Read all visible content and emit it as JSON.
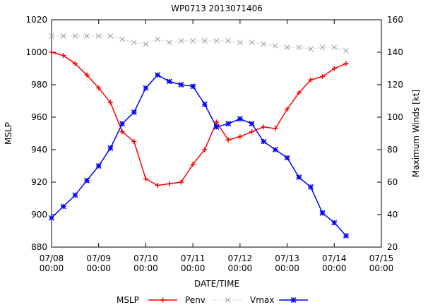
{
  "chart_data": {
    "type": "line",
    "title": "WP0713 2013071406",
    "xlabel": "DATE/TIME",
    "ylabel": "MSLP",
    "y2label": "Maximum Winds [kt]",
    "xlim": [
      0,
      168
    ],
    "ylim": [
      880,
      1020
    ],
    "y2lim": [
      20,
      160
    ],
    "x_ticks": [
      {
        "value": 0,
        "line1": "07/08",
        "line2": "00:00"
      },
      {
        "value": 24,
        "line1": "07/09",
        "line2": "00:00"
      },
      {
        "value": 48,
        "line1": "07/10",
        "line2": "00:00"
      },
      {
        "value": 72,
        "line1": "07/11",
        "line2": "00:00"
      },
      {
        "value": 96,
        "line1": "07/12",
        "line2": "00:00"
      },
      {
        "value": 120,
        "line1": "07/13",
        "line2": "00:00"
      },
      {
        "value": 144,
        "line1": "07/14",
        "line2": "00:00"
      },
      {
        "value": 168,
        "line1": "07/15",
        "line2": "00:00"
      }
    ],
    "y_ticks": [
      880,
      900,
      920,
      940,
      960,
      980,
      1000,
      1020
    ],
    "y2_ticks": [
      20,
      40,
      60,
      80,
      100,
      120,
      140,
      160
    ],
    "x": [
      0,
      6,
      12,
      18,
      24,
      30,
      36,
      42,
      48,
      54,
      60,
      66,
      72,
      78,
      84,
      90,
      96,
      102,
      108,
      114,
      120,
      126,
      132,
      138,
      144,
      150
    ],
    "series": [
      {
        "name": "MSLP",
        "axis": "y",
        "color": "#000000",
        "values": [
          null,
          null,
          null,
          null,
          null,
          null,
          null,
          null,
          null,
          null,
          null,
          null,
          null,
          null,
          null,
          null,
          null,
          null,
          null,
          null,
          null,
          null,
          null,
          null,
          null,
          null
        ]
      },
      {
        "name": "Penv",
        "axis": "y",
        "color": "#ff0000",
        "marker": "+",
        "values": [
          1000,
          998,
          993,
          986,
          978,
          969,
          951,
          945,
          922,
          918,
          919,
          920,
          931,
          940,
          957,
          946,
          948,
          951,
          954,
          953,
          965,
          975,
          983,
          985,
          990,
          993
        ]
      },
      {
        "name": "Vmax",
        "axis": "y",
        "color": "#a0a0a0",
        "marker": "x",
        "dotted": true,
        "values": [
          1010,
          1010,
          1010,
          1010,
          1010,
          1010,
          1008,
          1006,
          1005,
          1008,
          1006,
          1007,
          1007,
          1007,
          1007,
          1007,
          1006,
          1006,
          1005,
          1004,
          1003,
          1003,
          1002,
          1003,
          1003,
          1001
        ]
      },
      {
        "name": "",
        "axis": "y2",
        "color": "#0000ff",
        "marker": "asterisk",
        "values": [
          38,
          45,
          52,
          61,
          70,
          81,
          96,
          103,
          118,
          126,
          122,
          120,
          119,
          108,
          94,
          96,
          99,
          96,
          85,
          80,
          75,
          63,
          57,
          41,
          35,
          27
        ]
      }
    ],
    "legend": {
      "placement": "bottom",
      "entries": [
        "MSLP",
        "Penv",
        "Vmax",
        ""
      ]
    },
    "grid": false
  }
}
